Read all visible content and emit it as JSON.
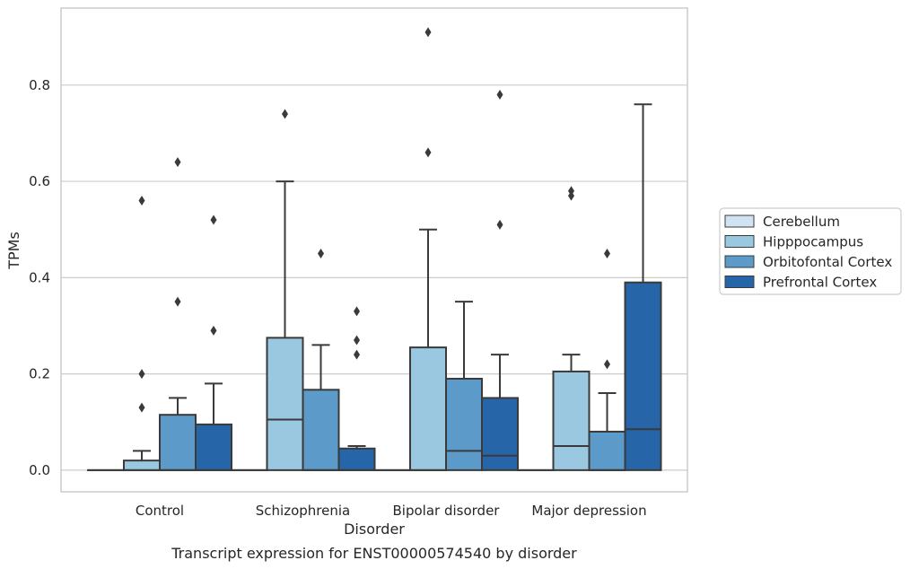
{
  "chart_data": {
    "type": "box",
    "xlabel": "Disorder",
    "ylabel": "TPMs",
    "caption": "Transcript expression for ENST00000574540 by disorder",
    "ylim": [
      -0.045,
      0.96
    ],
    "yticks": [
      0.0,
      0.2,
      0.4,
      0.6,
      0.8
    ],
    "ytick_labels": [
      "0.0",
      "0.2",
      "0.4",
      "0.6",
      "0.8"
    ],
    "grid": "horizontal",
    "legend_position": "right",
    "categories": [
      "Control",
      "Schizophrenia",
      "Bipolar disorder",
      "Major depression"
    ],
    "series": [
      {
        "name": "Cerebellum",
        "color": "#d1e2f2",
        "boxes": [
          {
            "q1": 0.0,
            "median": 0.0,
            "q3": 0.0,
            "whisker_low": 0.0,
            "whisker_high": 0.0,
            "outliers": []
          },
          {
            "q1": 0.0,
            "median": 0.0,
            "q3": 0.0,
            "whisker_low": 0.0,
            "whisker_high": 0.0,
            "outliers": []
          },
          {
            "q1": 0.0,
            "median": 0.0,
            "q3": 0.0,
            "whisker_low": 0.0,
            "whisker_high": 0.0,
            "outliers": []
          },
          {
            "q1": 0.0,
            "median": 0.0,
            "q3": 0.0,
            "whisker_low": 0.0,
            "whisker_high": 0.0,
            "outliers": []
          }
        ]
      },
      {
        "name": "Hipppocampus",
        "color": "#9ac8e0",
        "boxes": [
          {
            "q1": 0.0,
            "median": 0.0,
            "q3": 0.02,
            "whisker_low": 0.0,
            "whisker_high": 0.04,
            "outliers": [
              0.13,
              0.2,
              0.56
            ]
          },
          {
            "q1": 0.0,
            "median": 0.105,
            "q3": 0.275,
            "whisker_low": 0.0,
            "whisker_high": 0.6,
            "outliers": [
              0.74
            ]
          },
          {
            "q1": 0.0,
            "median": 0.0,
            "q3": 0.255,
            "whisker_low": 0.0,
            "whisker_high": 0.5,
            "outliers": [
              0.66,
              0.91
            ]
          },
          {
            "q1": 0.0,
            "median": 0.05,
            "q3": 0.205,
            "whisker_low": 0.0,
            "whisker_high": 0.24,
            "outliers": [
              0.57,
              0.58
            ]
          }
        ]
      },
      {
        "name": "Orbitofontal Cortex",
        "color": "#5b9ac9",
        "boxes": [
          {
            "q1": 0.0,
            "median": 0.0,
            "q3": 0.115,
            "whisker_low": 0.0,
            "whisker_high": 0.15,
            "outliers": [
              0.35,
              0.64
            ]
          },
          {
            "q1": 0.0,
            "median": 0.0,
            "q3": 0.167,
            "whisker_low": 0.0,
            "whisker_high": 0.26,
            "outliers": [
              0.45
            ]
          },
          {
            "q1": 0.0,
            "median": 0.04,
            "q3": 0.19,
            "whisker_low": 0.0,
            "whisker_high": 0.35,
            "outliers": []
          },
          {
            "q1": 0.0,
            "median": 0.0,
            "q3": 0.08,
            "whisker_low": 0.0,
            "whisker_high": 0.16,
            "outliers": [
              0.22,
              0.45
            ]
          }
        ]
      },
      {
        "name": "Prefrontal Cortex",
        "color": "#2565a8",
        "boxes": [
          {
            "q1": 0.0,
            "median": 0.0,
            "q3": 0.095,
            "whisker_low": 0.0,
            "whisker_high": 0.18,
            "outliers": [
              0.29,
              0.52
            ]
          },
          {
            "q1": 0.0,
            "median": 0.0,
            "q3": 0.045,
            "whisker_low": 0.0,
            "whisker_high": 0.05,
            "outliers": [
              0.24,
              0.27,
              0.33
            ]
          },
          {
            "q1": 0.0,
            "median": 0.03,
            "q3": 0.15,
            "whisker_low": 0.0,
            "whisker_high": 0.24,
            "outliers": [
              0.51,
              0.78
            ]
          },
          {
            "q1": 0.0,
            "median": 0.085,
            "q3": 0.39,
            "whisker_low": 0.0,
            "whisker_high": 0.76,
            "outliers": []
          }
        ]
      }
    ]
  }
}
